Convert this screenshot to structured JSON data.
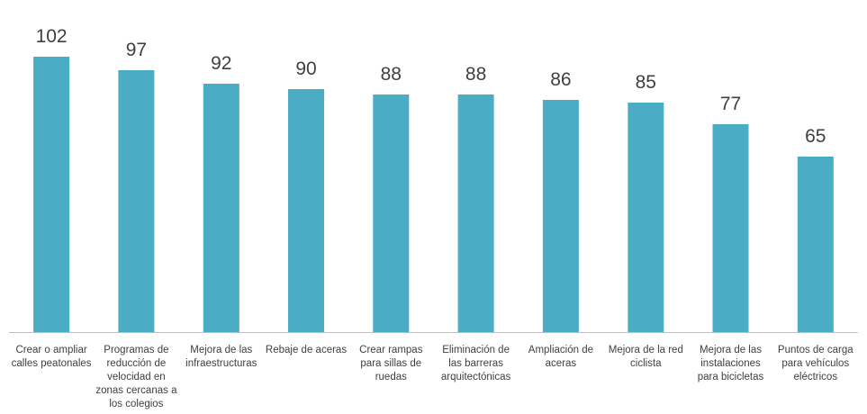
{
  "chart_data": {
    "type": "bar",
    "title": "",
    "xlabel": "",
    "ylabel": "",
    "ylim": [
      0,
      106
    ],
    "grid": false,
    "legend": "none",
    "bar_color": "#4BACC6",
    "axis_color": "#BFBFBF",
    "categories": [
      [
        "Crear o ampliar",
        "calles peatonales"
      ],
      [
        "Programas de",
        "reducción de",
        "velocidad en",
        "zonas cercanas a",
        "los colegios"
      ],
      [
        "Mejora de las",
        "infraestructuras"
      ],
      [
        "Rebaje de aceras"
      ],
      [
        "Crear rampas",
        "para sillas de",
        "ruedas"
      ],
      [
        "Eliminación de",
        "las barreras",
        "arquitectónicas"
      ],
      [
        "Ampliación de",
        "aceras"
      ],
      [
        "Mejora de la red",
        "ciclista"
      ],
      [
        "Mejora de las",
        "instalaciones",
        "para bicicletas"
      ],
      [
        "Puntos de carga",
        "para vehículos",
        "eléctricos"
      ]
    ],
    "values": [
      102,
      97,
      92,
      90,
      88,
      88,
      86,
      85,
      77,
      65
    ]
  }
}
